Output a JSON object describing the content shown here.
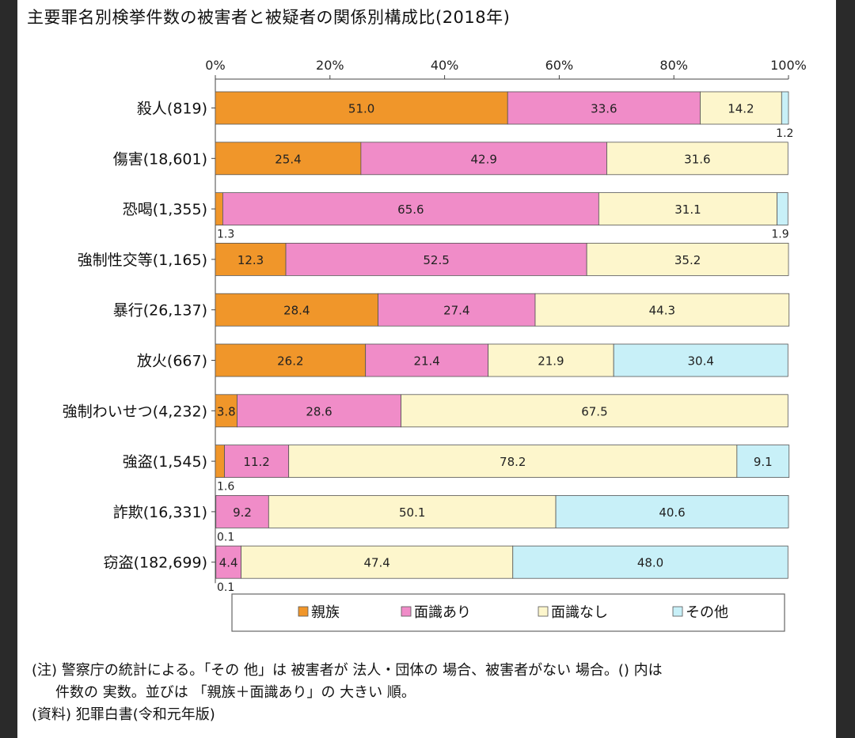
{
  "chart_data": {
    "type": "bar",
    "orientation": "horizontal",
    "stacked": true,
    "title": "主要罪名別検挙件数の被害者と被疑者の関係別構成比(2018年)",
    "xticks": [
      "0%",
      "20%",
      "40%",
      "60%",
      "80%",
      "100%"
    ],
    "xlim": [
      0,
      100
    ],
    "grid": false,
    "legend_position": "bottom",
    "categories": [
      "殺人(819)",
      "傷害(18,601)",
      "恐喝(1,355)",
      "強制性交等(1,165)",
      "暴行(26,137)",
      "放火(667)",
      "強制わいせつ(4,232)",
      "強盗(1,545)",
      "詐欺(16,331)",
      "窃盗(182,699)"
    ],
    "series": [
      {
        "name": "親族",
        "color": "#f0962a",
        "values": [
          51.0,
          25.4,
          1.3,
          12.3,
          28.4,
          26.2,
          3.8,
          1.6,
          0.1,
          0.1
        ]
      },
      {
        "name": "面識あり",
        "color": "#f08cc8",
        "values": [
          33.6,
          42.9,
          65.6,
          52.5,
          27.4,
          21.4,
          28.6,
          11.2,
          9.2,
          4.4
        ]
      },
      {
        "name": "面識なし",
        "color": "#fdf6cc",
        "values": [
          14.2,
          31.6,
          31.1,
          35.2,
          44.3,
          21.9,
          67.5,
          78.2,
          50.1,
          47.4
        ]
      },
      {
        "name": "その他",
        "color": "#c8f0f8",
        "values": [
          1.2,
          null,
          1.9,
          null,
          null,
          30.4,
          null,
          9.1,
          40.6,
          48.0
        ]
      }
    ]
  },
  "notes": [
    "(注) 警察庁の統計による。「その 他」は 被害者が 法人・団体の 場合、被害者がない 場合。() 内は",
    "件数の 実数。並びは 「親族＋面識あり」の 大きい 順。",
    "(資料) 犯罪白書(令和元年版)"
  ]
}
